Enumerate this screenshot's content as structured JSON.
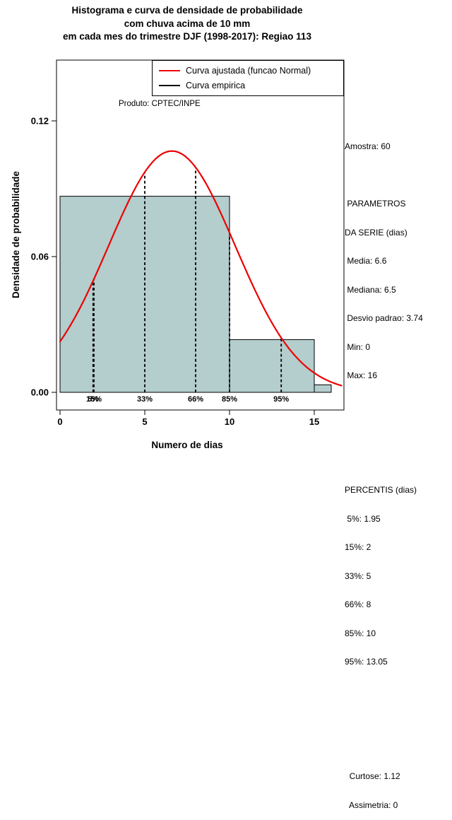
{
  "title": {
    "line1": "Histograma e curva de densidade de probabilidade",
    "line2": "com chuva acima de 10 mm",
    "line3": "em cada mes do trimestre DJF (1998-2017): Regiao 113"
  },
  "annotation": "Produto: CPTEC/INPE",
  "legend": [
    {
      "label": "Curva ajustada (funcao Normal)",
      "color": "#EE0000"
    },
    {
      "label": "Curva empirica",
      "color": "#000000"
    }
  ],
  "chart_data": {
    "type": "histogram+density-line",
    "title": "Histograma e curva de densidade de probabilidade com chuva acima de 10 mm em cada mes do trimestre DJF (1998-2017): Regiao 113",
    "xlabel": "Numero de dias",
    "ylabel": "Densidade de probabilidade",
    "xlim": [
      0,
      16.75
    ],
    "ylim": [
      0,
      0.13
    ],
    "x_ticks": [
      0,
      5,
      10,
      15
    ],
    "y_ticks": [
      {
        "value": 0.0,
        "label": "0.00"
      },
      {
        "value": 0.06,
        "label": "0.06"
      },
      {
        "value": 0.12,
        "label": "0.12"
      }
    ],
    "bars": [
      {
        "x0": 0,
        "x1": 10,
        "density": 0.0867
      },
      {
        "x0": 10,
        "x1": 15,
        "density": 0.0233
      },
      {
        "x0": 15,
        "x1": 16,
        "density": 0.0033
      }
    ],
    "bar_fill": "#B4CDCD",
    "bar_stroke": "#000000",
    "normal_curve": {
      "mean": 6.6,
      "sd": 3.74,
      "color": "#EE0000",
      "x_from": 0,
      "x_to": 16.6
    },
    "percentiles": [
      {
        "label": "5%",
        "x": 1.95
      },
      {
        "label": "15%",
        "x": 2
      },
      {
        "label": "33%",
        "x": 5
      },
      {
        "label": "66%",
        "x": 8
      },
      {
        "label": "85%",
        "x": 10
      },
      {
        "label": "95%",
        "x": 13.05
      }
    ],
    "sample_size": 60,
    "grid": false,
    "legend_position": "top-right-inside"
  },
  "stats_panel": {
    "lines": [
      "Amostra: 60",
      "",
      " PARAMETROS",
      "DA SERIE (dias)",
      " Media: 6.6",
      " Mediana: 6.5",
      " Desvio padrao: 3.74",
      " Min: 0",
      " Max: 16",
      "",
      "",
      "",
      "PERCENTIS (dias)",
      " 5%: 1.95",
      "15%: 2",
      "33%: 5",
      "66%: 8",
      "85%: 10",
      "95%: 13.05",
      "",
      "",
      "",
      "  Curtose: 1.12",
      "  Assimetria: 0"
    ]
  }
}
